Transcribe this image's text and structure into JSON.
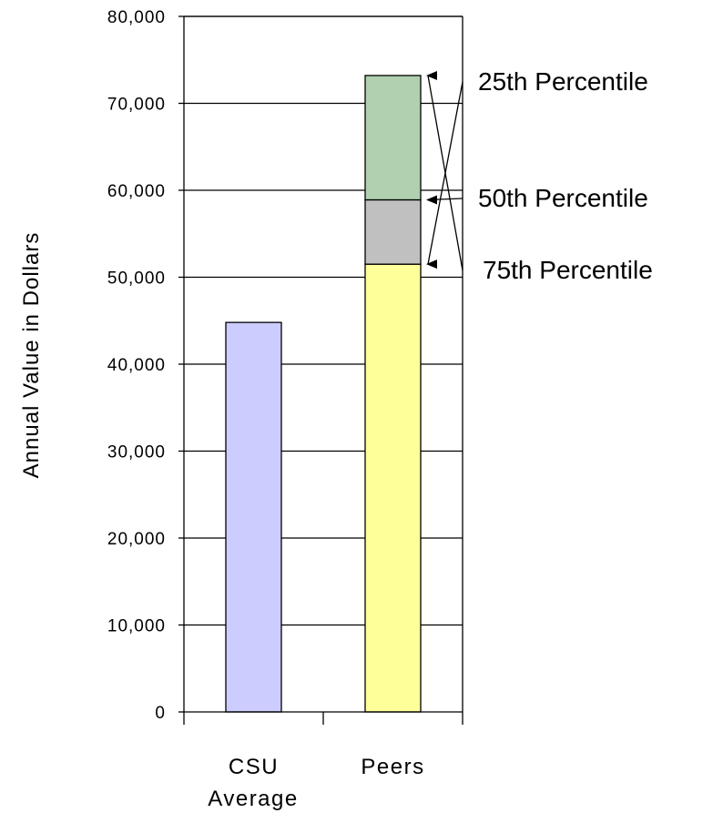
{
  "chart_data": {
    "type": "bar",
    "stacked": true,
    "categories": [
      "CSU",
      "Peers"
    ],
    "subcategory_label": "Average",
    "ylabel": "Annual Value in Dollars",
    "ylim": [
      0,
      80000
    ],
    "yticks": [
      0,
      10000,
      20000,
      30000,
      40000,
      50000,
      60000,
      70000,
      80000
    ],
    "ytick_labels": [
      "0",
      "10,000",
      "20,000",
      "30,000",
      "40,000",
      "50,000",
      "60,000",
      "70,000",
      "80,000"
    ],
    "grid": true,
    "bars": [
      {
        "category": "CSU",
        "segments": [
          {
            "value": 44800,
            "color": "#ccccff"
          }
        ]
      },
      {
        "category": "Peers",
        "segments": [
          {
            "value": 51500,
            "color": "#ffff99"
          },
          {
            "value": 7400,
            "color": "#c0c0c0"
          },
          {
            "value": 14300,
            "color": "#b0d0b0"
          }
        ]
      }
    ],
    "annotations": [
      {
        "label": "25th Percentile",
        "value": 51500
      },
      {
        "label": "50th Percentile",
        "value": 58900
      },
      {
        "label": "75th Percentile",
        "value": 73200
      }
    ]
  }
}
